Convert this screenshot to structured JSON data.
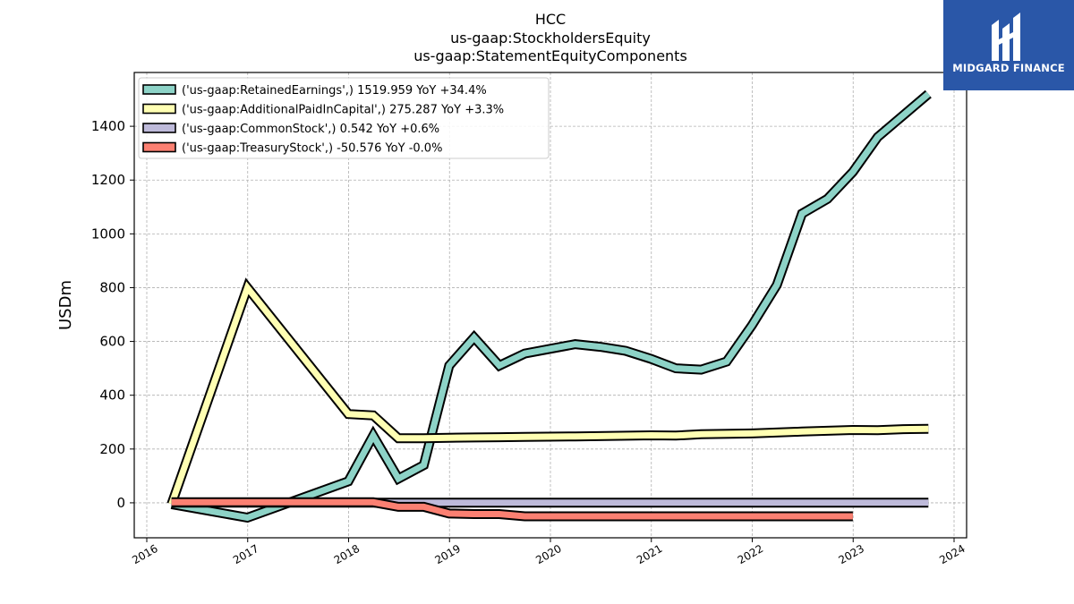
{
  "logo": {
    "text": "MIDGARD FINANCE",
    "background": "#2a57a8",
    "icon": "midgard-logo-icon"
  },
  "chart_data": {
    "type": "line",
    "title": [
      "HCC",
      "us-gaap:StockholdersEquity",
      "us-gaap:StatementEquityComponents"
    ],
    "xlabel": "",
    "ylabel": "USDm",
    "xlim": [
      "2016-01-01",
      "2024-01-01"
    ],
    "ylim": [
      -130,
      1600
    ],
    "yticks": [
      0,
      200,
      400,
      600,
      800,
      1000,
      1200,
      1400
    ],
    "xticks": [
      "2016",
      "2017",
      "2018",
      "2019",
      "2020",
      "2021",
      "2022",
      "2023",
      "2024"
    ],
    "grid": true,
    "legend_position": "upper-left",
    "series": [
      {
        "name": "('us-gaap:RetainedEarnings',) 1519.959 YoY +34.4%",
        "color": "#8dd3c7",
        "points": [
          [
            "2016-03-31",
            -5
          ],
          [
            "2016-12-31",
            -55
          ],
          [
            "2017-12-31",
            80
          ],
          [
            "2018-03-31",
            250
          ],
          [
            "2018-06-30",
            90
          ],
          [
            "2018-09-30",
            140
          ],
          [
            "2018-12-31",
            510
          ],
          [
            "2019-03-31",
            615
          ],
          [
            "2019-06-30",
            510
          ],
          [
            "2019-09-30",
            555
          ],
          [
            "2020-03-31",
            590
          ],
          [
            "2020-06-30",
            580
          ],
          [
            "2020-09-30",
            565
          ],
          [
            "2020-12-31",
            535
          ],
          [
            "2021-03-31",
            500
          ],
          [
            "2021-06-30",
            495
          ],
          [
            "2021-09-30",
            525
          ],
          [
            "2021-12-31",
            660
          ],
          [
            "2022-03-31",
            810
          ],
          [
            "2022-06-30",
            1075
          ],
          [
            "2022-09-30",
            1130
          ],
          [
            "2022-12-31",
            1230
          ],
          [
            "2023-03-31",
            1360
          ],
          [
            "2023-09-30",
            1520
          ]
        ]
      },
      {
        "name": "('us-gaap:AdditionalPaidInCapital',) 275.287 YoY +3.3%",
        "color": "#ffffb3",
        "points": [
          [
            "2016-03-31",
            -5
          ],
          [
            "2016-12-31",
            800
          ],
          [
            "2017-12-31",
            330
          ],
          [
            "2018-03-31",
            325
          ],
          [
            "2018-06-30",
            240
          ],
          [
            "2018-09-30",
            240
          ],
          [
            "2018-12-31",
            242
          ],
          [
            "2019-03-31",
            243
          ],
          [
            "2019-06-30",
            244
          ],
          [
            "2019-09-30",
            245
          ],
          [
            "2020-03-31",
            247
          ],
          [
            "2020-12-31",
            251
          ],
          [
            "2021-03-31",
            250
          ],
          [
            "2021-06-30",
            255
          ],
          [
            "2021-12-31",
            258
          ],
          [
            "2022-06-30",
            265
          ],
          [
            "2022-12-31",
            271
          ],
          [
            "2023-03-31",
            270
          ],
          [
            "2023-06-30",
            274
          ],
          [
            "2023-09-30",
            275
          ]
        ]
      },
      {
        "name": "('us-gaap:CommonStock',) 0.542 YoY +0.6%",
        "color": "#bebada",
        "points": [
          [
            "2016-03-31",
            0.5
          ],
          [
            "2023-09-30",
            0.5
          ]
        ]
      },
      {
        "name": "('us-gaap:TreasuryStock',) -50.576 YoY -0.0%",
        "color": "#fb8072",
        "points": [
          [
            "2016-03-31",
            2
          ],
          [
            "2018-03-31",
            2
          ],
          [
            "2018-06-30",
            -15
          ],
          [
            "2018-09-30",
            -15
          ],
          [
            "2018-12-31",
            -40
          ],
          [
            "2019-03-31",
            -42
          ],
          [
            "2019-06-30",
            -42
          ],
          [
            "2019-09-30",
            -50
          ],
          [
            "2022-12-31",
            -50
          ]
        ]
      }
    ]
  }
}
